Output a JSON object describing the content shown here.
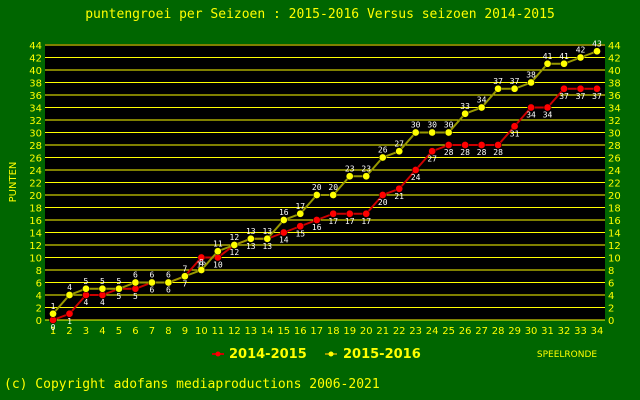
{
  "colors": {
    "background": "#006600",
    "plot_background": "#000000",
    "grid": "#ffff00",
    "text": "#ffff00",
    "series_2014": "#ff0000",
    "series_2015": "#ffff00",
    "line_2014": "#cc0000",
    "line_2015": "#999900"
  },
  "footer": "(c) Copyright adofans mediaproductions 2006-2021",
  "chart_data": {
    "type": "line",
    "title": "puntengroei per Seizoen : 2015-2016 Versus seizoen 2014-2015",
    "xlabel": "SPEELRONDE",
    "ylabel": "PUNTEN",
    "xlim": [
      1,
      34
    ],
    "ylim": [
      0,
      44
    ],
    "ytick_step": 2,
    "grid": true,
    "legend_position": "bottom",
    "x": [
      1,
      2,
      3,
      4,
      5,
      6,
      7,
      8,
      9,
      10,
      11,
      12,
      13,
      14,
      15,
      16,
      17,
      18,
      19,
      20,
      21,
      22,
      23,
      24,
      25,
      26,
      27,
      28,
      29,
      30,
      31,
      32,
      33,
      34
    ],
    "series": [
      {
        "name": "2014-2015",
        "values": [
          0,
          1,
          4,
          4,
          5,
          5,
          6,
          6,
          7,
          10,
          10,
          12,
          13,
          13,
          14,
          15,
          16,
          17,
          17,
          17,
          20,
          21,
          24,
          27,
          28,
          28,
          28,
          28,
          31,
          34,
          34,
          37,
          37,
          37
        ]
      },
      {
        "name": "2015-2016",
        "values": [
          1,
          4,
          5,
          5,
          5,
          6,
          6,
          6,
          7,
          8,
          11,
          12,
          13,
          13,
          16,
          17,
          20,
          20,
          23,
          23,
          26,
          27,
          30,
          30,
          30,
          33,
          34,
          37,
          37,
          38,
          41,
          41,
          42,
          43
        ]
      }
    ]
  }
}
